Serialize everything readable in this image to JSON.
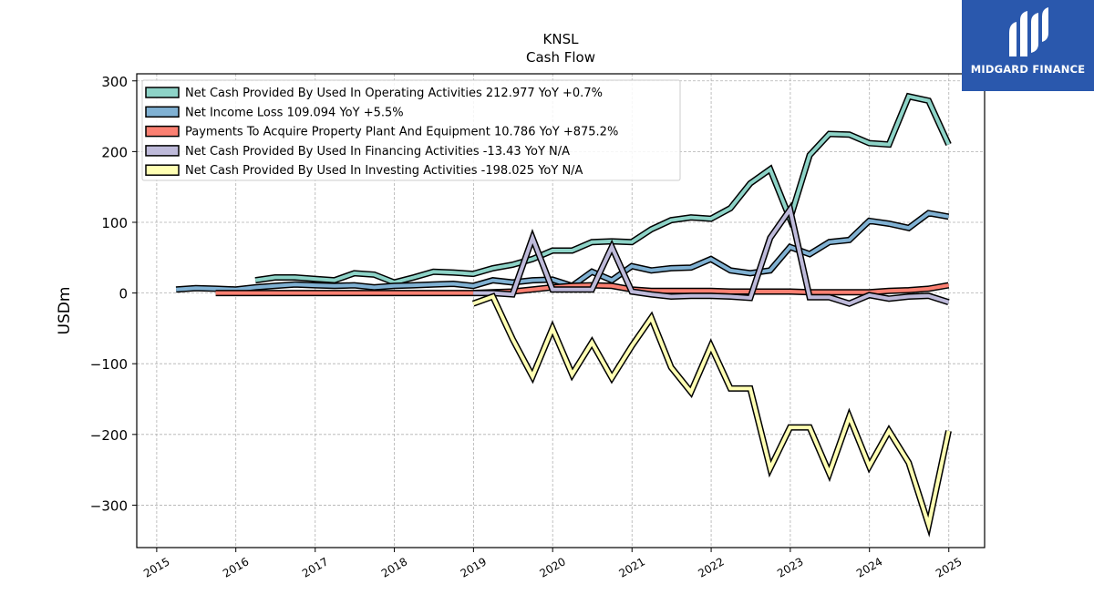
{
  "brand": {
    "name": "MIDGARD FINANCE",
    "bg": "#2a58ad"
  },
  "chart_data": {
    "type": "line",
    "title": "KNSL",
    "subtitle": "Cash Flow",
    "ylabel": "USDm",
    "xlabel": "",
    "xlim": [
      "2014-10-01",
      "2025-06-15"
    ],
    "ylim": [
      -360,
      310
    ],
    "yticks": [
      300,
      200,
      100,
      0,
      -100,
      -200,
      -300
    ],
    "ytick_labels": [
      "300",
      "200",
      "100",
      "0",
      "−100",
      "−200",
      "−300"
    ],
    "xticks": [
      "2015",
      "2016",
      "2017",
      "2018",
      "2019",
      "2020",
      "2021",
      "2022",
      "2023",
      "2024",
      "2025"
    ],
    "grid": true,
    "legend_position": "top-left",
    "series": [
      {
        "name": "Net Cash Provided By Used In Operating Activities  212.977 YoY +0.7%",
        "color": "#8dd3c7",
        "x": [
          "2016-03-31",
          "2016-06-30",
          "2016-09-30",
          "2016-12-31",
          "2017-03-31",
          "2017-06-30",
          "2017-09-30",
          "2017-12-31",
          "2018-03-31",
          "2018-06-30",
          "2018-09-30",
          "2018-12-31",
          "2019-03-31",
          "2019-06-30",
          "2019-09-30",
          "2019-12-31",
          "2020-03-31",
          "2020-06-30",
          "2020-09-30",
          "2020-12-31",
          "2021-03-31",
          "2021-06-30",
          "2021-09-30",
          "2021-12-31",
          "2022-03-31",
          "2022-06-30",
          "2022-09-30",
          "2022-12-31",
          "2023-03-31",
          "2023-06-30",
          "2023-09-30",
          "2023-12-31",
          "2024-03-31",
          "2024-06-30",
          "2024-09-30",
          "2024-12-31"
        ],
        "values": [
          18,
          22,
          22,
          20,
          18,
          28,
          26,
          15,
          22,
          30,
          29,
          27,
          35,
          40,
          48,
          60,
          60,
          72,
          73,
          72,
          90,
          103,
          107,
          105,
          120,
          155,
          175,
          105,
          195,
          225,
          224,
          212,
          210,
          278,
          272,
          210
        ]
      },
      {
        "name": "Net Income Loss  109.094 YoY +5.5%",
        "color": "#80b1d3",
        "x": [
          "2015-03-31",
          "2015-06-30",
          "2015-09-30",
          "2015-12-31",
          "2016-03-31",
          "2016-06-30",
          "2016-09-30",
          "2016-12-31",
          "2017-03-31",
          "2017-06-30",
          "2017-09-30",
          "2017-12-31",
          "2018-03-31",
          "2018-06-30",
          "2018-09-30",
          "2018-12-31",
          "2019-03-31",
          "2019-06-30",
          "2019-09-30",
          "2019-12-31",
          "2020-03-31",
          "2020-06-30",
          "2020-09-30",
          "2020-12-31",
          "2021-03-31",
          "2021-06-30",
          "2021-09-30",
          "2021-12-31",
          "2022-03-31",
          "2022-06-30",
          "2022-09-30",
          "2022-12-31",
          "2023-03-31",
          "2023-06-30",
          "2023-09-30",
          "2023-12-31",
          "2024-03-31",
          "2024-06-30",
          "2024-09-30",
          "2024-12-31"
        ],
        "values": [
          5,
          7,
          6,
          5,
          8,
          10,
          12,
          11,
          10,
          11,
          8,
          10,
          11,
          12,
          13,
          10,
          18,
          15,
          18,
          19,
          10,
          30,
          18,
          38,
          32,
          35,
          36,
          48,
          32,
          28,
          32,
          65,
          55,
          72,
          75,
          102,
          98,
          92,
          113,
          108
        ]
      },
      {
        "name": "Payments To Acquire Property Plant And Equipment  10.786 YoY +875.2%",
        "color": "#fb8072",
        "x": [
          "2015-09-30",
          "2015-12-31",
          "2016-03-31",
          "2016-06-30",
          "2016-09-30",
          "2016-12-31",
          "2017-03-31",
          "2017-06-30",
          "2017-09-30",
          "2017-12-31",
          "2018-03-31",
          "2018-06-30",
          "2018-09-30",
          "2018-12-31",
          "2019-03-31",
          "2019-06-30",
          "2019-09-30",
          "2019-12-31",
          "2020-03-31",
          "2020-06-30",
          "2020-09-30",
          "2020-12-31",
          "2021-03-31",
          "2021-06-30",
          "2021-09-30",
          "2021-12-31",
          "2022-03-31",
          "2022-06-30",
          "2022-09-30",
          "2022-12-31",
          "2023-03-31",
          "2023-06-30",
          "2023-09-30",
          "2023-12-31",
          "2024-03-31",
          "2024-06-30",
          "2024-09-30",
          "2024-12-31"
        ],
        "values": [
          0,
          0,
          0,
          0,
          0,
          0,
          0,
          0,
          0,
          0,
          0,
          0,
          0,
          0,
          1,
          2,
          5,
          8,
          10,
          11,
          10,
          5,
          3,
          3,
          3,
          3,
          2,
          2,
          2,
          2,
          1,
          1,
          1,
          1,
          3,
          4,
          6,
          11
        ]
      },
      {
        "name": "Net Cash Provided By Used In Financing Activities  -13.43 YoY N/A",
        "color": "#bebada",
        "x": [
          "2018-12-31",
          "2019-03-31",
          "2019-06-30",
          "2019-09-30",
          "2019-12-31",
          "2020-03-31",
          "2020-06-30",
          "2020-09-30",
          "2020-12-31",
          "2021-03-31",
          "2021-06-30",
          "2021-09-30",
          "2021-12-31",
          "2022-03-31",
          "2022-06-30",
          "2022-09-30",
          "2022-12-31",
          "2023-03-31",
          "2023-06-30",
          "2023-09-30",
          "2023-12-31",
          "2024-03-31",
          "2024-06-30",
          "2024-09-30",
          "2024-12-31"
        ],
        "values": [
          0,
          0,
          -2,
          78,
          5,
          5,
          5,
          65,
          2,
          -2,
          -5,
          -4,
          -4,
          -5,
          -7,
          78,
          118,
          -6,
          -6,
          -15,
          -3,
          -8,
          -5,
          -4,
          -13
        ]
      },
      {
        "name": "Net Cash Provided By Used In Investing Activities  -198.025 YoY N/A",
        "color": "#ffffb3",
        "x": [
          "2018-12-31",
          "2019-03-31",
          "2019-06-30",
          "2019-09-30",
          "2019-12-31",
          "2020-03-31",
          "2020-06-30",
          "2020-09-30",
          "2020-12-31",
          "2021-03-31",
          "2021-06-30",
          "2021-09-30",
          "2021-12-31",
          "2022-03-31",
          "2022-06-30",
          "2022-09-30",
          "2022-12-31",
          "2023-03-31",
          "2023-06-30",
          "2023-09-30",
          "2023-12-31",
          "2024-03-31",
          "2024-06-30",
          "2024-09-30",
          "2024-12-31"
        ],
        "values": [
          -15,
          -5,
          -65,
          -118,
          -50,
          -115,
          -70,
          -120,
          -75,
          -35,
          -105,
          -140,
          -75,
          -135,
          -135,
          -248,
          -190,
          -190,
          -255,
          -175,
          -245,
          -195,
          -240,
          -328,
          -195
        ]
      }
    ]
  }
}
